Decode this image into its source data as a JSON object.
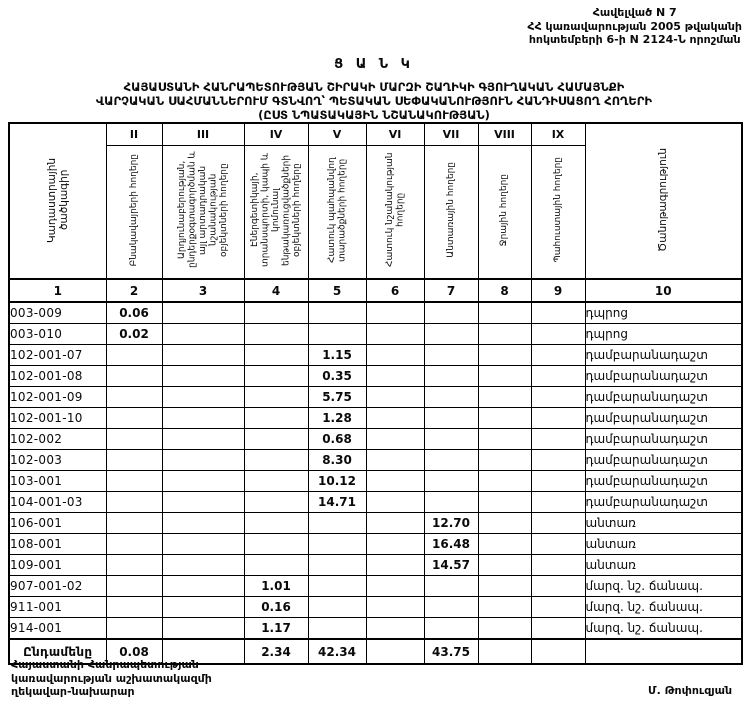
{
  "header": {
    "appendix_lines": [
      "Հավելված N 7",
      "ՀՀ կառավարության 2005 թվականի",
      "հոկտեմբերի 6-ի N 2124-Ն  որոշման"
    ]
  },
  "title": {
    "main": "Ց Ա Ն Կ",
    "lines": [
      "ՀԱՅԱՍՏԱՆԻ ՀԱՆՐԱՊԵՏՈՒԹՅԱՆ ՇԻՐԱԿԻ ՄԱՐԶԻ ՇԱՂԻԿԻ ԳՅՈՒՂԱԿԱՆ ՀԱՄԱՅՆՔԻ",
      "ՎԱՐՉԱԿԱՆ ՍԱՀՄԱՆՆԵՐՈՒՄ ԳՏՆՎՈՂ՝ ՊԵՏԱԿԱՆ ՍԵՓԱԿԱՆՈՒԹՅՈՒՆ ՀԱՆԴԻՍԱՑՈՂ ՀՈՂԵՐԻ",
      "(ԸՍՏ ՆՊԱՏԱԿԱՅԻՆ ՆՇԱՆԱԿՈՒԹՅԱՆ)"
    ]
  },
  "table": {
    "corner_header": "Կադաստրային ծածկագիր",
    "note_header": "Ծանոթագրություն",
    "columns": [
      {
        "numeral": "II",
        "label": "Բնակավայրերի հողերը"
      },
      {
        "numeral": "III",
        "label": "Արդյունաբերության, ընդերքօգտագործման և այլ արտադրական նշանակության օբյեկտների հողերը"
      },
      {
        "numeral": "IV",
        "label": "Էներգետիկայի, տրանսպորտի, կապի և կոմունալ ենթակառուցվածքների օբյեկտների հողերը"
      },
      {
        "numeral": "V",
        "label": "Հատուկ պահպանվող տարածքների հողերը"
      },
      {
        "numeral": "VI",
        "label": "Հատուկ նշանակության հողերը"
      },
      {
        "numeral": "VII",
        "label": "Անտառային հողերը"
      },
      {
        "numeral": "VIII",
        "label": "Ջրային հողերը"
      },
      {
        "numeral": "IX",
        "label": "Պահուստային հողերը"
      }
    ],
    "column_numbers": [
      "1",
      "2",
      "3",
      "4",
      "5",
      "6",
      "7",
      "8",
      "9",
      "10"
    ],
    "rows": [
      {
        "code": "003-009",
        "c2": "0.06",
        "c3": "",
        "c4": "",
        "c5": "",
        "c6": "",
        "c7": "",
        "c8": "",
        "c9": "",
        "note": "դպրոց"
      },
      {
        "code": "003-010",
        "c2": "0.02",
        "c3": "",
        "c4": "",
        "c5": "",
        "c6": "",
        "c7": "",
        "c8": "",
        "c9": "",
        "note": "դպրոց"
      },
      {
        "code": "102-001-07",
        "c2": "",
        "c3": "",
        "c4": "",
        "c5": "1.15",
        "c6": "",
        "c7": "",
        "c8": "",
        "c9": "",
        "note": "դամբարանադաշտ"
      },
      {
        "code": "102-001-08",
        "c2": "",
        "c3": "",
        "c4": "",
        "c5": "0.35",
        "c6": "",
        "c7": "",
        "c8": "",
        "c9": "",
        "note": "դամբարանադաշտ"
      },
      {
        "code": "102-001-09",
        "c2": "",
        "c3": "",
        "c4": "",
        "c5": "5.75",
        "c6": "",
        "c7": "",
        "c8": "",
        "c9": "",
        "note": "դամբարանադաշտ"
      },
      {
        "code": "102-001-10",
        "c2": "",
        "c3": "",
        "c4": "",
        "c5": "1.28",
        "c6": "",
        "c7": "",
        "c8": "",
        "c9": "",
        "note": "դամբարանադաշտ"
      },
      {
        "code": "102-002",
        "c2": "",
        "c3": "",
        "c4": "",
        "c5": "0.68",
        "c6": "",
        "c7": "",
        "c8": "",
        "c9": "",
        "note": "դամբարանադաշտ"
      },
      {
        "code": "102-003",
        "c2": "",
        "c3": "",
        "c4": "",
        "c5": "8.30",
        "c6": "",
        "c7": "",
        "c8": "",
        "c9": "",
        "note": "դամբարանադաշտ"
      },
      {
        "code": "103-001",
        "c2": "",
        "c3": "",
        "c4": "",
        "c5": "10.12",
        "c6": "",
        "c7": "",
        "c8": "",
        "c9": "",
        "note": "դամբարանադաշտ"
      },
      {
        "code": "104-001-03",
        "c2": "",
        "c3": "",
        "c4": "",
        "c5": "14.71",
        "c6": "",
        "c7": "",
        "c8": "",
        "c9": "",
        "note": "դամբարանադաշտ"
      },
      {
        "code": "106-001",
        "c2": "",
        "c3": "",
        "c4": "",
        "c5": "",
        "c6": "",
        "c7": "12.70",
        "c8": "",
        "c9": "",
        "note": "անտառ"
      },
      {
        "code": "108-001",
        "c2": "",
        "c3": "",
        "c4": "",
        "c5": "",
        "c6": "",
        "c7": "16.48",
        "c8": "",
        "c9": "",
        "note": "անտառ"
      },
      {
        "code": "109-001",
        "c2": "",
        "c3": "",
        "c4": "",
        "c5": "",
        "c6": "",
        "c7": "14.57",
        "c8": "",
        "c9": "",
        "note": "անտառ"
      },
      {
        "code": "907-001-02",
        "c2": "",
        "c3": "",
        "c4": "1.01",
        "c5": "",
        "c6": "",
        "c7": "",
        "c8": "",
        "c9": "",
        "note": "մարզ. նշ. ճանապ."
      },
      {
        "code": "911-001",
        "c2": "",
        "c3": "",
        "c4": "0.16",
        "c5": "",
        "c6": "",
        "c7": "",
        "c8": "",
        "c9": "",
        "note": "մարզ. նշ. ճանապ."
      },
      {
        "code": "914-001",
        "c2": "",
        "c3": "",
        "c4": "1.17",
        "c5": "",
        "c6": "",
        "c7": "",
        "c8": "",
        "c9": "",
        "note": "մարզ. նշ. ճանապ."
      }
    ],
    "total": {
      "label": "Ընդամենը",
      "c2": "0.08",
      "c3": "",
      "c4": "2.34",
      "c5": "42.34",
      "c6": "",
      "c7": "43.75",
      "c8": "",
      "c9": "",
      "note": ""
    }
  },
  "footer": {
    "left_lines": [
      "Հայաստանի Հանրապետության",
      "կառավարության աշխատակազմի",
      "ղեկավար-նախարար"
    ],
    "signature": "Մ. Թոփուզյան"
  }
}
